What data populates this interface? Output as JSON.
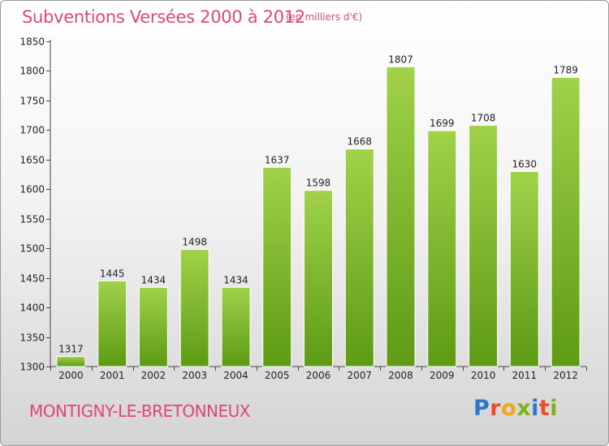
{
  "header": {
    "title": "Subventions Versées 2000 à 2012",
    "subtitle": "(en milliers d'€)"
  },
  "footer": {
    "place_name": "MONTIGNY-LE-BRETONNEUX",
    "logo_text": "Proxiti"
  },
  "colors": {
    "title": "#e0457b",
    "bar_top": "#a0d24a",
    "bar_bottom": "#5e9a14",
    "logo_letters": [
      "#2a77c9",
      "#e94e2a",
      "#f2a51a",
      "#7ab51d",
      "#2a77c9",
      "#e94e2a",
      "#7ab51d"
    ]
  },
  "chart_data": {
    "type": "bar",
    "title": "Subventions Versées 2000 à 2012",
    "subtitle": "(en milliers d'€)",
    "xlabel": "",
    "ylabel": "",
    "categories": [
      "2000",
      "2001",
      "2002",
      "2003",
      "2004",
      "2005",
      "2006",
      "2007",
      "2008",
      "2009",
      "2010",
      "2011",
      "2012"
    ],
    "values": [
      1317,
      1445,
      1434,
      1498,
      1434,
      1637,
      1598,
      1668,
      1807,
      1699,
      1708,
      1630,
      1789
    ],
    "ylim": [
      1300,
      1850
    ],
    "yticks": [
      1300,
      1350,
      1400,
      1450,
      1500,
      1550,
      1600,
      1650,
      1700,
      1750,
      1800,
      1850
    ],
    "grid": false,
    "legend": "none"
  }
}
